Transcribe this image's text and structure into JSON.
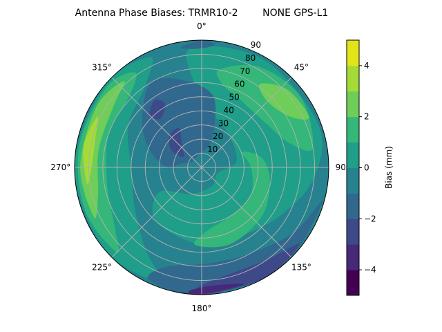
{
  "chart_data": {
    "type": "heatmap",
    "subtype": "polar-filled-contour",
    "title": "Antenna Phase Biases: TRMR10-2        NONE GPS-L1",
    "angular_axis": {
      "direction": "clockwise",
      "zero": "north",
      "tick_labels": [
        "0°",
        "45°",
        "90°",
        "135°",
        "180°",
        "225°",
        "270°",
        "315°"
      ],
      "tick_values": [
        0,
        45,
        90,
        135,
        180,
        225,
        270,
        315
      ]
    },
    "radial_axis": {
      "range": [
        0,
        90
      ],
      "tick_labels": [
        "10",
        "20",
        "30",
        "40",
        "50",
        "60",
        "70",
        "80",
        "90"
      ],
      "tick_values": [
        10,
        20,
        30,
        40,
        50,
        60,
        70,
        80,
        90
      ]
    },
    "grid": true,
    "colorbar": {
      "label": "Bias (mm)",
      "range": [
        -5,
        5
      ],
      "levels": [
        -5,
        -4,
        -3,
        -2,
        -1,
        0,
        1,
        2,
        3,
        4,
        5
      ],
      "tick_values": [
        4,
        2,
        0,
        -2,
        -4
      ],
      "tick_labels": [
        "4",
        "2",
        "−0",
        "−2",
        "−4"
      ],
      "colormap": "viridis",
      "colors": [
        "#440154",
        "#482878",
        "#3e4989",
        "#31688e",
        "#26828e",
        "#1f9e89",
        "#35b779",
        "#6ece58",
        "#a5db36",
        "#e2e418"
      ]
    },
    "background_level_index": 4,
    "regions": [
      {
        "level_index": 5,
        "points": [
          [
            355,
            85
          ],
          [
            30,
            88
          ],
          [
            70,
            88
          ],
          [
            95,
            80
          ],
          [
            120,
            66
          ],
          [
            150,
            56
          ],
          [
            180,
            55
          ],
          [
            220,
            50
          ],
          [
            240,
            35
          ],
          [
            200,
            20
          ],
          [
            150,
            15
          ],
          [
            110,
            12
          ],
          [
            80,
            25
          ],
          [
            40,
            30
          ],
          [
            10,
            40
          ],
          [
            355,
            60
          ]
        ]
      },
      {
        "level_index": 5,
        "points": [
          [
            200,
            86
          ],
          [
            230,
            90
          ],
          [
            270,
            90
          ],
          [
            310,
            90
          ],
          [
            335,
            86
          ],
          [
            325,
            70
          ],
          [
            300,
            60
          ],
          [
            270,
            50
          ],
          [
            240,
            55
          ],
          [
            215,
            70
          ]
        ]
      },
      {
        "level_index": 3,
        "points": [
          [
            280,
            15
          ],
          [
            300,
            8
          ],
          [
            350,
            10
          ],
          [
            20,
            20
          ],
          [
            10,
            50
          ],
          [
            350,
            62
          ],
          [
            330,
            70
          ],
          [
            310,
            55
          ],
          [
            290,
            40
          ],
          [
            270,
            25
          ]
        ]
      },
      {
        "level_index": 3,
        "points": [
          [
            105,
            89
          ],
          [
            125,
            80
          ],
          [
            150,
            70
          ],
          [
            175,
            68
          ],
          [
            200,
            75
          ],
          [
            205,
            88
          ],
          [
            180,
            90
          ],
          [
            140,
            90
          ]
        ]
      },
      {
        "level_index": 3,
        "points": [
          [
            350,
            86
          ],
          [
            358,
            84
          ],
          [
            6,
            87
          ],
          [
            0,
            90
          ]
        ]
      },
      {
        "level_index": 6,
        "points": [
          [
            10,
            70
          ],
          [
            30,
            82
          ],
          [
            55,
            86
          ],
          [
            80,
            80
          ],
          [
            75,
            65
          ],
          [
            55,
            55
          ],
          [
            30,
            55
          ],
          [
            15,
            60
          ]
        ]
      },
      {
        "level_index": 6,
        "points": [
          [
            70,
            30
          ],
          [
            90,
            35
          ],
          [
            120,
            40
          ],
          [
            150,
            40
          ],
          [
            175,
            45
          ],
          [
            185,
            55
          ],
          [
            160,
            58
          ],
          [
            130,
            55
          ],
          [
            105,
            50
          ],
          [
            85,
            45
          ],
          [
            75,
            38
          ]
        ]
      },
      {
        "level_index": 6,
        "points": [
          [
            225,
            85
          ],
          [
            250,
            88
          ],
          [
            280,
            88
          ],
          [
            310,
            88
          ],
          [
            325,
            82
          ],
          [
            315,
            72
          ],
          [
            290,
            70
          ],
          [
            260,
            68
          ],
          [
            235,
            75
          ]
        ]
      },
      {
        "level_index": 7,
        "points": [
          [
            35,
            72
          ],
          [
            48,
            82
          ],
          [
            65,
            84
          ],
          [
            60,
            72
          ],
          [
            45,
            66
          ]
        ]
      },
      {
        "level_index": 7,
        "points": [
          [
            245,
            84
          ],
          [
            270,
            86
          ],
          [
            300,
            86
          ],
          [
            318,
            82
          ],
          [
            305,
            76
          ],
          [
            280,
            74
          ],
          [
            255,
            76
          ]
        ]
      },
      {
        "level_index": 8,
        "points": [
          [
            262,
            82
          ],
          [
            280,
            85
          ],
          [
            296,
            82
          ],
          [
            285,
            78
          ],
          [
            270,
            78
          ]
        ]
      },
      {
        "level_index": 2,
        "points": [
          [
            300,
            15
          ],
          [
            320,
            22
          ],
          [
            330,
            32
          ],
          [
            315,
            32
          ],
          [
            300,
            25
          ]
        ]
      },
      {
        "level_index": 2,
        "points": [
          [
            320,
            45
          ],
          [
            330,
            52
          ],
          [
            325,
            58
          ],
          [
            315,
            52
          ]
        ]
      },
      {
        "level_index": 2,
        "points": [
          [
            128,
            88
          ],
          [
            145,
            80
          ],
          [
            165,
            78
          ],
          [
            182,
            85
          ],
          [
            178,
            90
          ],
          [
            150,
            90
          ]
        ]
      },
      {
        "level_index": 1,
        "points": [
          [
            160,
            88
          ],
          [
            175,
            84
          ],
          [
            186,
            88
          ],
          [
            180,
            90
          ]
        ]
      }
    ]
  }
}
